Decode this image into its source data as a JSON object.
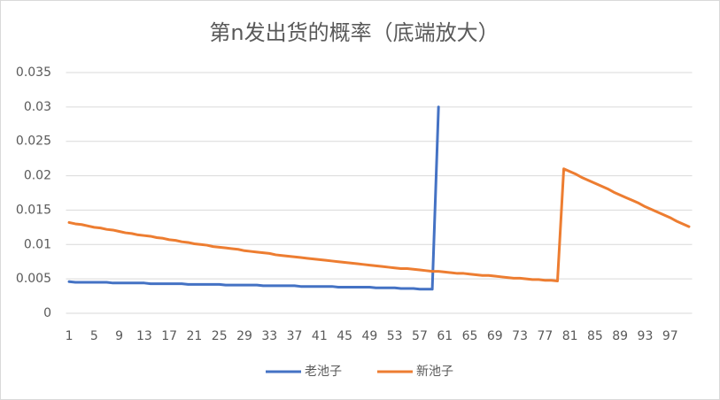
{
  "chart_data": {
    "type": "line",
    "title": "第n发出货的概率（底端放大）",
    "categories": [
      1,
      null,
      null,
      null,
      5,
      null,
      null,
      null,
      9,
      null,
      null,
      null,
      13,
      null,
      null,
      null,
      17,
      null,
      null,
      null,
      21,
      null,
      null,
      null,
      25,
      null,
      null,
      null,
      29,
      null,
      null,
      null,
      33,
      null,
      null,
      null,
      37,
      null,
      null,
      null,
      41,
      null,
      null,
      null,
      45,
      null,
      null,
      null,
      49,
      null,
      null,
      null,
      53,
      null,
      null,
      null,
      57,
      null,
      null,
      null,
      61,
      null,
      null,
      null,
      65,
      null,
      null,
      null,
      69,
      null,
      null,
      null,
      73,
      null,
      null,
      null,
      77,
      null,
      null,
      null,
      81,
      null,
      null,
      null,
      85,
      null,
      null,
      null,
      89,
      null,
      null,
      null,
      93,
      null,
      null,
      null,
      97,
      null,
      null,
      null
    ],
    "series": [
      {
        "name": "老池子",
        "color": "#4472c4",
        "values": [
          0.0046,
          0.0045,
          0.0045,
          0.0045,
          0.0045,
          0.0045,
          0.0045,
          0.0044,
          0.0044,
          0.0044,
          0.0044,
          0.0044,
          0.0044,
          0.0043,
          0.0043,
          0.0043,
          0.0043,
          0.0043,
          0.0043,
          0.0042,
          0.0042,
          0.0042,
          0.0042,
          0.0042,
          0.0042,
          0.0041,
          0.0041,
          0.0041,
          0.0041,
          0.0041,
          0.0041,
          0.004,
          0.004,
          0.004,
          0.004,
          0.004,
          0.004,
          0.0039,
          0.0039,
          0.0039,
          0.0039,
          0.0039,
          0.0039,
          0.0038,
          0.0038,
          0.0038,
          0.0038,
          0.0038,
          0.0038,
          0.0037,
          0.0037,
          0.0037,
          0.0037,
          0.0036,
          0.0036,
          0.0036,
          0.0035,
          0.0035,
          0.0035,
          0.03,
          null,
          null,
          null,
          null,
          null,
          null,
          null,
          null,
          null,
          null,
          null,
          null,
          null,
          null,
          null,
          null,
          null,
          null,
          null,
          null,
          null,
          null,
          null,
          null,
          null,
          null,
          null,
          null,
          null,
          null,
          null,
          null,
          null,
          null,
          null,
          null,
          null,
          null,
          null,
          null
        ]
      },
      {
        "name": "新池子",
        "color": "#ed7d31",
        "values": [
          0.0132,
          0.013,
          0.0129,
          0.0127,
          0.0125,
          0.0124,
          0.0122,
          0.0121,
          0.0119,
          0.0117,
          0.0116,
          0.0114,
          0.0113,
          0.0112,
          0.011,
          0.0109,
          0.0107,
          0.0106,
          0.0104,
          0.0103,
          0.0101,
          0.01,
          0.0099,
          0.0097,
          0.0096,
          0.0095,
          0.0094,
          0.0093,
          0.0091,
          0.009,
          0.0089,
          0.0088,
          0.0087,
          0.0085,
          0.0084,
          0.0083,
          0.0082,
          0.0081,
          0.008,
          0.0079,
          0.0078,
          0.0077,
          0.0076,
          0.0075,
          0.0074,
          0.0073,
          0.0072,
          0.0071,
          0.007,
          0.0069,
          0.0068,
          0.0067,
          0.0066,
          0.0065,
          0.0065,
          0.0064,
          0.0063,
          0.0062,
          0.0061,
          0.0061,
          0.006,
          0.0059,
          0.0058,
          0.0058,
          0.0057,
          0.0056,
          0.0055,
          0.0055,
          0.0054,
          0.0053,
          0.0052,
          0.0051,
          0.0051,
          0.005,
          0.0049,
          0.0049,
          0.0048,
          0.0048,
          0.0047,
          0.021,
          0.0206,
          0.0202,
          0.0197,
          0.0193,
          0.0189,
          0.0185,
          0.0181,
          0.0176,
          0.0172,
          0.0168,
          0.0164,
          0.016,
          0.0155,
          0.0151,
          0.0147,
          0.0143,
          0.0139,
          0.0134,
          0.013,
          0.0126
        ]
      }
    ],
    "ylim": [
      0,
      0.035
    ],
    "yticks": [
      0,
      0.005,
      0.01,
      0.015,
      0.02,
      0.025,
      0.03,
      0.035
    ],
    "grid": true,
    "legend": "bottom"
  }
}
